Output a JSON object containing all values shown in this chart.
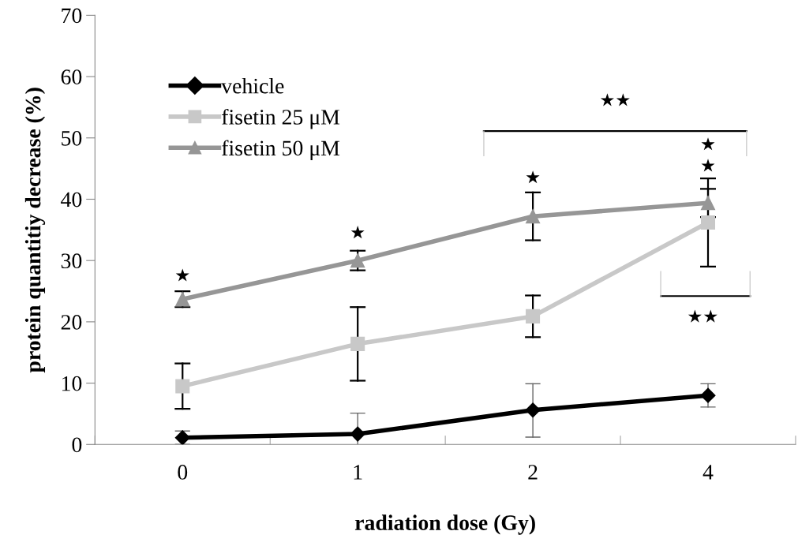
{
  "chart_data": {
    "type": "line",
    "xlabel": "radiation dose (Gy)",
    "ylabel": "protein quantitiy decrease (%)",
    "categories": [
      "0",
      "1",
      "2",
      "4"
    ],
    "series": [
      {
        "name": "vehicle",
        "color": "#000000",
        "marker": "diamond",
        "values": [
          1.1,
          1.7,
          5.6,
          8.0
        ],
        "errors": [
          1.1,
          3.4,
          [
            1.2,
            9.9
          ],
          1.9
        ]
      },
      {
        "name": "fisetin 25 μM",
        "color": "#c8c8c8",
        "marker": "square",
        "values": [
          9.5,
          16.4,
          20.9,
          36.2
        ],
        "errors": [
          3.7,
          6.0,
          3.4,
          7.2
        ]
      },
      {
        "name": "fisetin 50 μM",
        "color": "#969696",
        "marker": "triangle",
        "values": [
          23.7,
          30.0,
          37.2,
          39.4
        ],
        "errors": [
          1.3,
          1.6,
          3.9,
          2.3
        ]
      }
    ],
    "ylim": [
      0,
      70
    ],
    "yticks": [
      0,
      10,
      20,
      30,
      40,
      50,
      60,
      70
    ],
    "grid": false,
    "legend": "top left",
    "annotations": [
      "★",
      "★",
      "★",
      "★",
      "★",
      "★★",
      "★★"
    ]
  }
}
